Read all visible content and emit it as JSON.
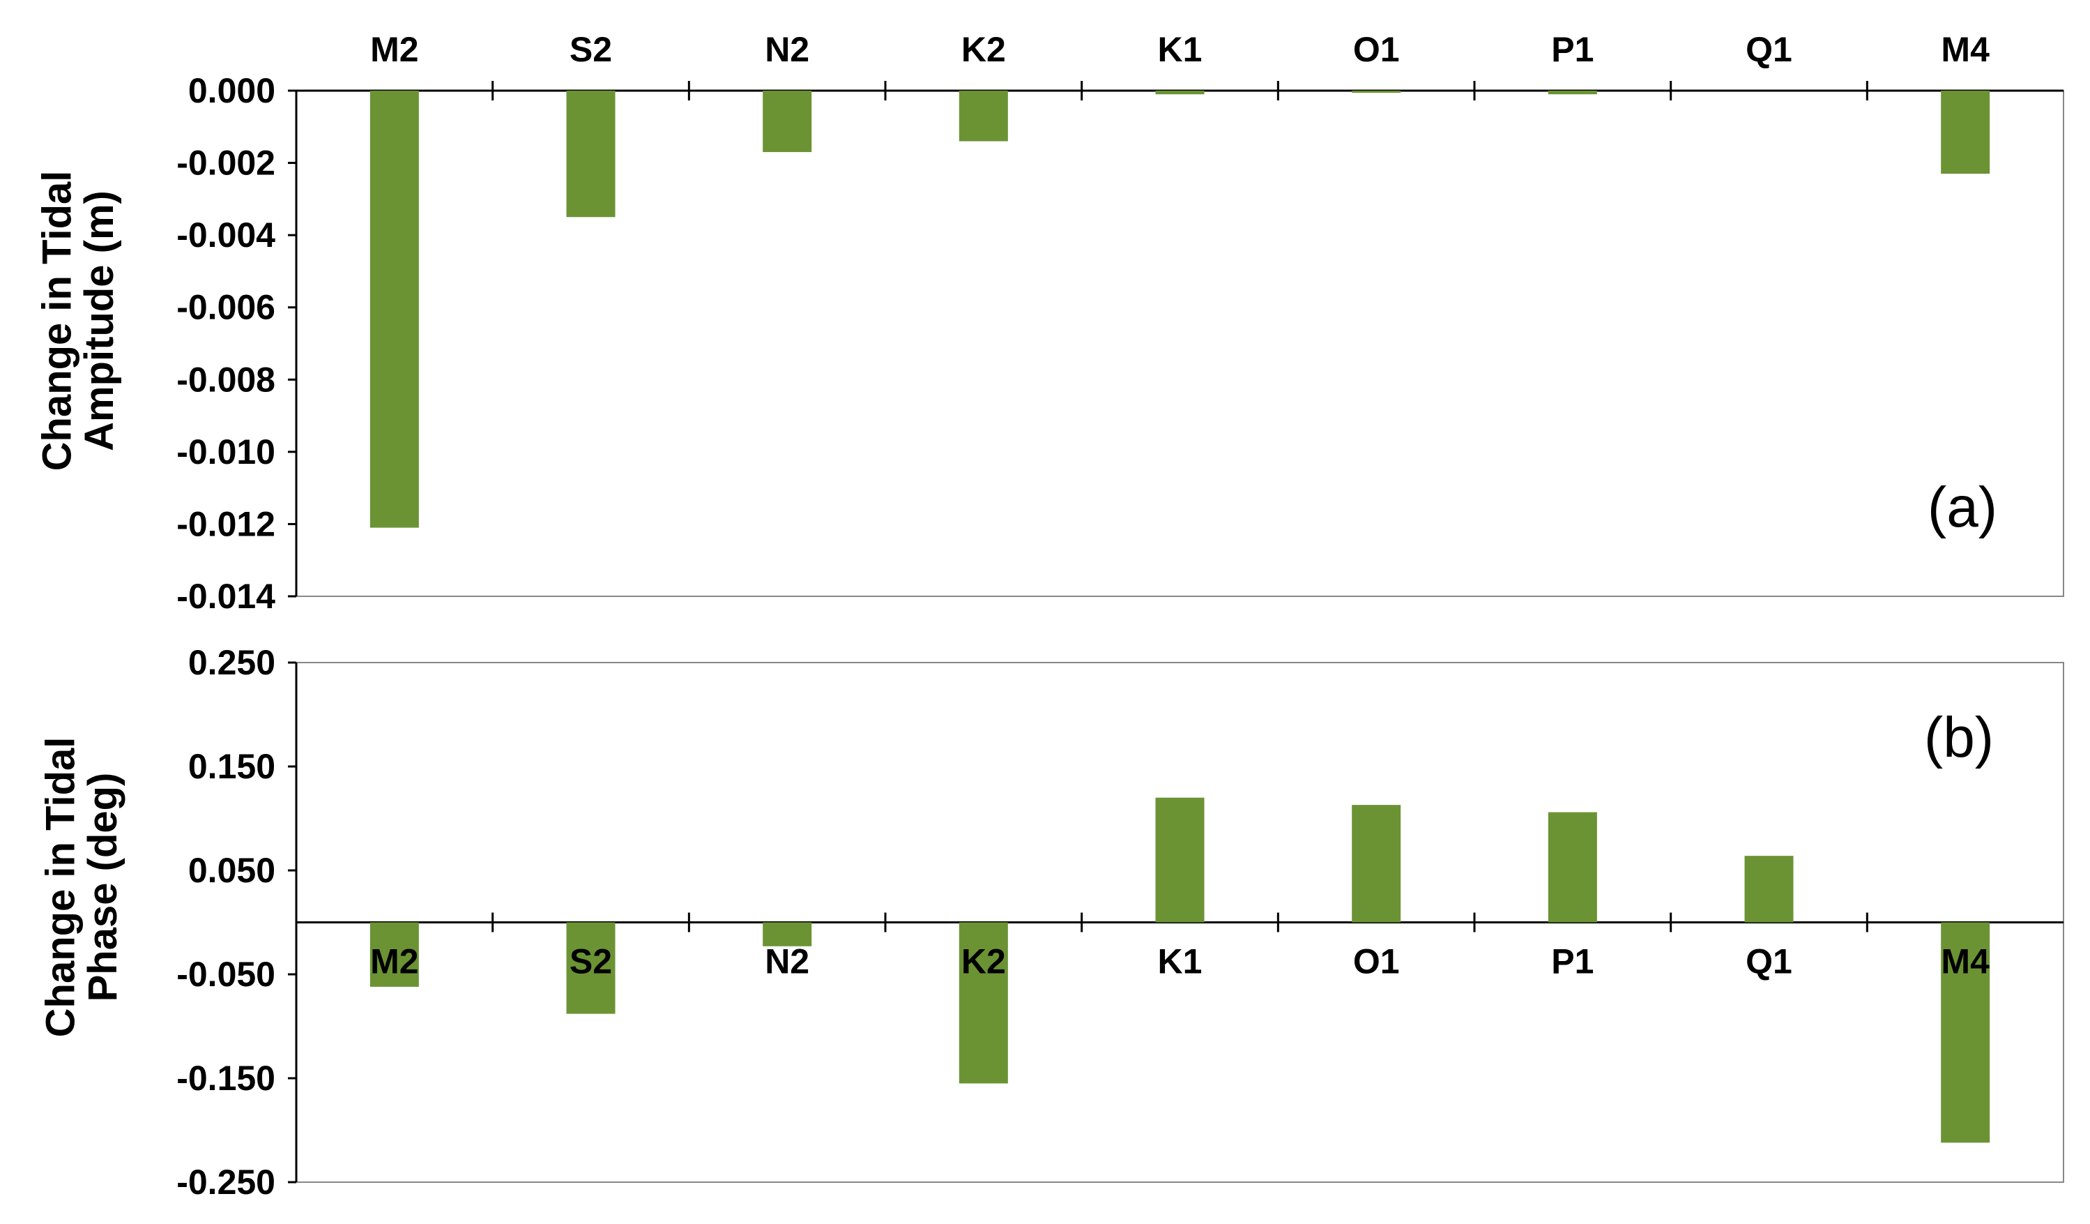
{
  "colors": {
    "bar": "#6B9334",
    "axis": "#000000",
    "frame": "#888888"
  },
  "chart_data": [
    {
      "type": "bar",
      "panel_label": "(a)",
      "categories": [
        "M2",
        "S2",
        "N2",
        "K2",
        "K1",
        "O1",
        "P1",
        "Q1",
        "M4"
      ],
      "values": [
        -0.0121,
        -0.0035,
        -0.0017,
        -0.0014,
        -0.0001,
        -5e-05,
        -0.0001,
        0.0,
        -0.0023
      ],
      "ylabel": "Change in Tidal Amplitude (m)",
      "ylabel_lines": [
        "Change in Tidal",
        "Ampitude (m)"
      ],
      "ylim": [
        -0.014,
        0.0
      ],
      "yticks": [
        0.0,
        -0.002,
        -0.004,
        -0.006,
        -0.008,
        -0.01,
        -0.012,
        -0.014
      ],
      "ytick_labels": [
        "0.000",
        "-0.002",
        "-0.004",
        "-0.006",
        "-0.008",
        "-0.010",
        "-0.012",
        "-0.014"
      ],
      "category_label_position": "top",
      "grid": false
    },
    {
      "type": "bar",
      "panel_label": "(b)",
      "categories": [
        "M2",
        "S2",
        "N2",
        "K2",
        "K1",
        "O1",
        "P1",
        "Q1",
        "M4"
      ],
      "values": [
        -0.062,
        -0.088,
        -0.023,
        -0.155,
        0.12,
        0.113,
        0.106,
        0.064,
        -0.212
      ],
      "ylabel": "Change in Tidal Phase (deg)",
      "ylabel_lines": [
        "Change in Tidal",
        "Phase (deg)"
      ],
      "ylim": [
        -0.25,
        0.25
      ],
      "yticks": [
        0.25,
        0.15,
        0.05,
        -0.05,
        -0.15,
        -0.25
      ],
      "ytick_labels": [
        "0.250",
        "0.150",
        "0.050",
        "-0.050",
        "-0.150",
        "-0.250"
      ],
      "category_label_position": "zero-line",
      "grid": false
    }
  ]
}
